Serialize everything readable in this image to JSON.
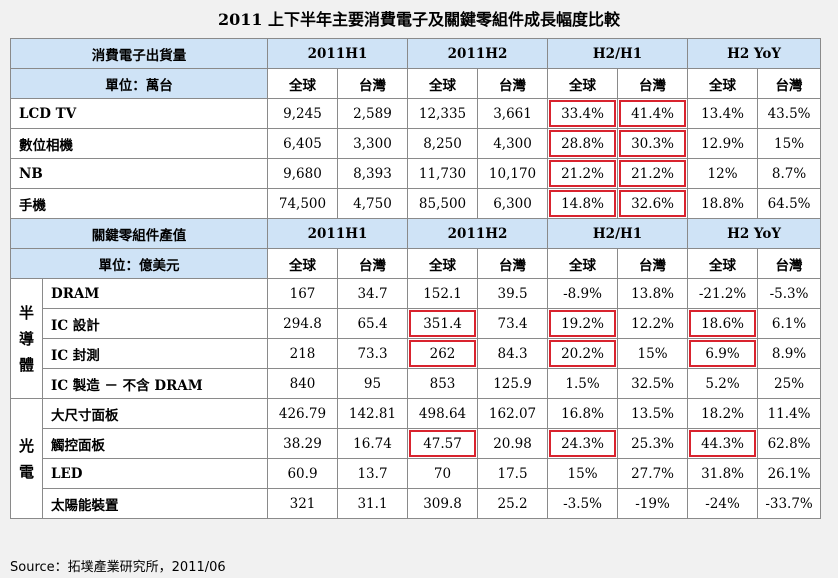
{
  "title": "2011 上下半年主要消費電子及關鍵零組件成長幅度比較",
  "source": "Source：拓墣產業研究所，2011/06",
  "colors": {
    "header_bg": "#cfe3f6",
    "highlight_border": "#d9232e",
    "grid": "#8a8a8a"
  },
  "table1": {
    "header": {
      "label": "消費電子出貨量",
      "groups": [
        "2011H1",
        "2011H2",
        "H2/H1",
        "H2 YoY"
      ],
      "unit": "單位：萬台",
      "sub": [
        "全球",
        "台灣",
        "全球",
        "台灣",
        "全球",
        "台灣",
        "全球",
        "台灣"
      ]
    },
    "rows": [
      {
        "name": "LCD TV",
        "cells": [
          "9,245",
          "2,589",
          "12,335",
          "3,661",
          "33.4%",
          "41.4%",
          "13.4%",
          "43.5%"
        ]
      },
      {
        "name": "數位相機",
        "cells": [
          "6,405",
          "3,300",
          "8,250",
          "4,300",
          "28.8%",
          "30.3%",
          "12.9%",
          "15%"
        ]
      },
      {
        "name": "NB",
        "cells": [
          "9,680",
          "8,393",
          "11,730",
          "10,170",
          "21.2%",
          "21.2%",
          "12%",
          "8.7%"
        ]
      },
      {
        "name": "手機",
        "cells": [
          "74,500",
          "4,750",
          "85,500",
          "6,300",
          "14.8%",
          "32.6%",
          "18.8%",
          "64.5%"
        ]
      }
    ]
  },
  "table2": {
    "header": {
      "label": "關鍵零組件產值",
      "groups": [
        "2011H1",
        "2011H2",
        "H2/H1",
        "H2 YoY"
      ],
      "unit": "單位：億美元",
      "sub": [
        "全球",
        "台灣",
        "全球",
        "台灣",
        "全球",
        "台灣",
        "全球",
        "台灣"
      ]
    },
    "groups": [
      {
        "label": "半導體",
        "rows": [
          {
            "name": "DRAM",
            "cells": [
              "167",
              "34.7",
              "152.1",
              "39.5",
              "-8.9%",
              "13.8%",
              "-21.2%",
              "-5.3%"
            ]
          },
          {
            "name": "IC 設計",
            "cells": [
              "294.8",
              "65.4",
              "351.4",
              "73.4",
              "19.2%",
              "12.2%",
              "18.6%",
              "6.1%"
            ]
          },
          {
            "name": "IC 封測",
            "cells": [
              "218",
              "73.3",
              "262",
              "84.3",
              "20.2%",
              "15%",
              "6.9%",
              "8.9%"
            ]
          },
          {
            "name": "IC 製造 － 不含 DRAM",
            "cells": [
              "840",
              "95",
              "853",
              "125.9",
              "1.5%",
              "32.5%",
              "5.2%",
              "25%"
            ]
          }
        ]
      },
      {
        "label": "光電",
        "rows": [
          {
            "name": "大尺寸面板",
            "cells": [
              "426.79",
              "142.81",
              "498.64",
              "162.07",
              "16.8%",
              "13.5%",
              "18.2%",
              "11.4%"
            ]
          },
          {
            "name": "觸控面板",
            "cells": [
              "38.29",
              "16.74",
              "47.57",
              "20.98",
              "24.3%",
              "25.3%",
              "44.3%",
              "62.8%"
            ]
          },
          {
            "name": "LED",
            "cells": [
              "60.9",
              "13.7",
              "70",
              "17.5",
              "15%",
              "27.7%",
              "31.8%",
              "26.1%"
            ]
          },
          {
            "name": "太陽能裝置",
            "cells": [
              "321",
              "31.1",
              "309.8",
              "25.2",
              "-3.5%",
              "-19%",
              "-24%",
              "-33.7%"
            ]
          }
        ]
      }
    ]
  }
}
